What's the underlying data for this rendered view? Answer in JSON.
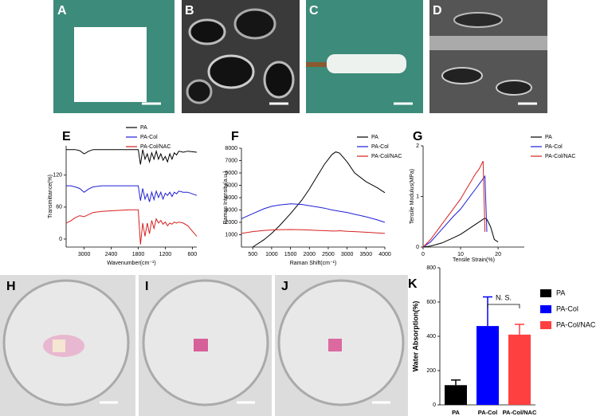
{
  "photo_labels": [
    "A",
    "B",
    "C",
    "D",
    "H",
    "I",
    "J"
  ],
  "chart_data": [
    {
      "type": "line",
      "label": "E",
      "y_label": "Transmittance(%)",
      "x_label": "Wavenumber(cm⁻¹)",
      "x": [
        3400,
        3300,
        3200,
        3100,
        3000,
        2900,
        2800,
        2600,
        2400,
        2200,
        2000,
        1850,
        1800,
        1750,
        1700,
        1650,
        1600,
        1550,
        1500,
        1450,
        1400,
        1350,
        1300,
        1250,
        1200,
        1150,
        1100,
        1050,
        1000,
        950,
        900,
        800,
        700,
        600,
        500
      ],
      "xlim": [
        3400,
        500
      ],
      "xticks": [
        3000,
        2400,
        1800,
        1200,
        600
      ],
      "ylim": [
        -15,
        175
      ],
      "yticks": [
        0,
        60,
        120
      ],
      "series": [
        {
          "name": "PA",
          "color": "#000000",
          "values": [
            168,
            168,
            168,
            166,
            160,
            165,
            168,
            168,
            168,
            168,
            168,
            168,
            168,
            140,
            168,
            150,
            160,
            145,
            162,
            150,
            165,
            150,
            160,
            148,
            155,
            145,
            160,
            150,
            162,
            158,
            165,
            163,
            165,
            164,
            163
          ]
        },
        {
          "name": "PA-Col",
          "color": "#1f1fd6",
          "values": [
            100,
            100,
            98,
            95,
            88,
            94,
            98,
            100,
            100,
            100,
            100,
            100,
            100,
            72,
            95,
            75,
            85,
            70,
            88,
            74,
            90,
            78,
            88,
            75,
            86,
            82,
            88,
            80,
            88,
            85,
            90,
            88,
            88,
            85,
            82
          ]
        },
        {
          "name": "PA-Col/NAC",
          "color": "#d62020",
          "values": [
            30,
            34,
            40,
            44,
            42,
            46,
            50,
            52,
            53,
            54,
            55,
            55,
            55,
            -10,
            30,
            5,
            30,
            10,
            35,
            20,
            38,
            30,
            35,
            28,
            32,
            25,
            30,
            28,
            32,
            30,
            32,
            30,
            25,
            15,
            5
          ]
        }
      ]
    },
    {
      "type": "line",
      "label": "F",
      "y_label": "Raman Intensity(a.u.)",
      "x_label": "Raman Shift(cm⁻¹)",
      "x": [
        200,
        500,
        800,
        1000,
        1200,
        1500,
        1800,
        2000,
        2200,
        2400,
        2600,
        2700,
        2800,
        3000,
        3200,
        3500,
        3800,
        4000
      ],
      "xlim": [
        200,
        4000
      ],
      "xticks": [
        500,
        1000,
        1500,
        2000,
        2500,
        3000,
        3500,
        4000
      ],
      "ylim": [
        0,
        8000
      ],
      "yticks": [
        1000,
        2000,
        3000,
        4000,
        5000,
        6000,
        7000,
        8000
      ],
      "series": [
        {
          "name": "PA",
          "color": "#000000",
          "values": [
            null,
            0,
            600,
            1100,
            1700,
            2700,
            3800,
            4700,
            5700,
            6700,
            7500,
            7700,
            7600,
            6900,
            6000,
            5300,
            4800,
            4400
          ]
        },
        {
          "name": "PA-Col",
          "color": "#1f1fd6",
          "values": [
            2300,
            2700,
            3100,
            3300,
            3400,
            3500,
            3450,
            3350,
            3250,
            3150,
            3000,
            2950,
            2900,
            2800,
            2650,
            2450,
            2200,
            2000
          ]
        },
        {
          "name": "PA-Col/NAC",
          "color": "#d62020",
          "values": [
            1100,
            1250,
            1350,
            1380,
            1400,
            1420,
            1400,
            1380,
            1350,
            1330,
            1300,
            1300,
            1320,
            1280,
            1250,
            1200,
            1150,
            1100
          ]
        }
      ]
    },
    {
      "type": "line",
      "label": "G",
      "y_label": "Tensile Modulus(MPa)",
      "x_label": "Tensile Strain(%)",
      "x": [
        0,
        2,
        5,
        8,
        10,
        12,
        14,
        15,
        16,
        16.5,
        17,
        18,
        19,
        20
      ],
      "xlim": [
        0,
        27
      ],
      "xticks": [
        0,
        10,
        20
      ],
      "ylim": [
        0,
        2
      ],
      "yticks": [
        0,
        1,
        2
      ],
      "series": [
        {
          "name": "PA",
          "color": "#000000",
          "values": [
            0,
            0.02,
            0.08,
            0.18,
            0.25,
            0.35,
            0.45,
            0.5,
            0.55,
            0.57,
            0.55,
            0.4,
            0.15,
            0.1
          ]
        },
        {
          "name": "PA-Col",
          "color": "#1f1fd6",
          "values": [
            0,
            0.1,
            0.35,
            0.6,
            0.75,
            0.95,
            1.15,
            1.25,
            1.35,
            1.4,
            0.3,
            null,
            null,
            null
          ]
        },
        {
          "name": "PA-Col/NAC",
          "color": "#d62020",
          "values": [
            0,
            0.15,
            0.45,
            0.75,
            0.95,
            1.2,
            1.45,
            1.55,
            1.7,
            0.3,
            null,
            null,
            null,
            null
          ]
        }
      ]
    },
    {
      "type": "bar",
      "label": "K",
      "y_label": "Water Absorption(%)",
      "categories": [
        "PA",
        "PA-Col",
        "PA-Col/NAC"
      ],
      "values": [
        115,
        460,
        410
      ],
      "errors": [
        30,
        170,
        60
      ],
      "colors": [
        "#000000",
        "#0000ff",
        "#ff4040"
      ],
      "ylim": [
        0,
        800
      ],
      "yticks": [
        0,
        200,
        400,
        600,
        800
      ],
      "annotation": "N. S."
    }
  ]
}
